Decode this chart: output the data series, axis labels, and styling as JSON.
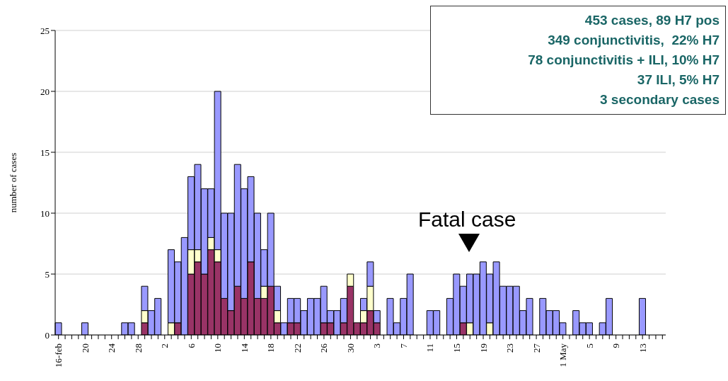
{
  "chart_data": {
    "type": "bar",
    "stacked": true,
    "ylabel": "number of cases",
    "ylim": [
      0,
      25
    ],
    "yticks": [
      0,
      5,
      10,
      15,
      20,
      25
    ],
    "grid": "y",
    "categories": [
      "16-feb",
      null,
      null,
      null,
      "20",
      null,
      null,
      null,
      "24",
      null,
      null,
      null,
      "28",
      null,
      null,
      null,
      "2",
      null,
      null,
      null,
      "6",
      null,
      null,
      null,
      "10",
      null,
      null,
      null,
      "14",
      null,
      null,
      null,
      "18",
      null,
      null,
      null,
      "22",
      null,
      null,
      null,
      "26",
      null,
      null,
      null,
      "30",
      null,
      null,
      null,
      "3",
      null,
      null,
      null,
      "7",
      null,
      null,
      null,
      "11",
      null,
      null,
      null,
      "15",
      null,
      null,
      null,
      "19",
      null,
      null,
      null,
      "23",
      null,
      null,
      null,
      "27",
      null,
      null,
      null,
      "1 May",
      null,
      null,
      null,
      "5",
      null,
      null,
      null,
      "9",
      null,
      null,
      null,
      "13",
      null,
      null,
      null
    ],
    "series": [
      {
        "color": "#993366",
        "values": [
          0,
          0,
          0,
          0,
          0,
          0,
          0,
          0,
          0,
          0,
          0,
          0,
          0,
          1,
          0,
          0,
          0,
          0,
          1,
          0,
          5,
          6,
          5,
          7,
          6,
          3,
          2,
          4,
          3,
          6,
          3,
          3,
          4,
          1,
          0,
          1,
          1,
          0,
          0,
          0,
          1,
          1,
          0,
          1,
          4,
          1,
          1,
          2,
          1,
          0,
          0,
          0,
          0,
          0,
          0,
          0,
          0,
          0,
          0,
          0,
          0,
          1,
          0,
          0,
          0,
          0,
          0,
          0,
          0,
          0,
          0,
          0,
          0,
          0,
          0,
          0,
          0,
          0,
          0,
          0,
          0,
          0,
          0,
          0,
          0,
          0,
          0,
          0,
          0,
          0,
          0,
          0
        ]
      },
      {
        "color": "#ffffcc",
        "values": [
          0,
          0,
          0,
          0,
          0,
          0,
          0,
          0,
          0,
          0,
          0,
          0,
          0,
          1,
          0,
          0,
          0,
          1,
          0,
          0,
          2,
          1,
          0,
          1,
          1,
          0,
          0,
          0,
          0,
          0,
          0,
          1,
          0,
          1,
          0,
          0,
          0,
          0,
          0,
          0,
          0,
          0,
          0,
          0,
          1,
          0,
          1,
          2,
          0,
          0,
          0,
          0,
          0,
          0,
          0,
          0,
          0,
          0,
          0,
          0,
          0,
          0,
          1,
          0,
          0,
          1,
          0,
          0,
          0,
          0,
          0,
          0,
          0,
          0,
          0,
          0,
          0,
          0,
          0,
          0,
          0,
          0,
          0,
          0,
          0,
          0,
          0,
          0,
          0,
          0,
          0,
          0
        ]
      },
      {
        "color": "#9999ff",
        "values": [
          1,
          0,
          0,
          0,
          1,
          0,
          0,
          0,
          0,
          0,
          1,
          1,
          0,
          2,
          2,
          3,
          0,
          6,
          5,
          8,
          6,
          7,
          7,
          4,
          13,
          7,
          8,
          10,
          9,
          7,
          7,
          3,
          6,
          2,
          1,
          2,
          2,
          2,
          3,
          3,
          3,
          1,
          2,
          2,
          0,
          0,
          1,
          2,
          1,
          0,
          3,
          1,
          3,
          5,
          0,
          0,
          2,
          2,
          0,
          3,
          5,
          3,
          4,
          5,
          6,
          4,
          6,
          4,
          4,
          4,
          2,
          3,
          0,
          3,
          2,
          2,
          1,
          0,
          2,
          1,
          1,
          0,
          1,
          3,
          0,
          0,
          0,
          0,
          3,
          0,
          0,
          0
        ]
      }
    ],
    "annotations": [
      "Fatal case",
      "453 cases, 89 H7 pos",
      "349 conjunctivitis,  22% H7",
      "78 conjunctivitis + ILI, 10% H7",
      "37 ILI, 5% H7",
      "3 secondary cases"
    ]
  }
}
